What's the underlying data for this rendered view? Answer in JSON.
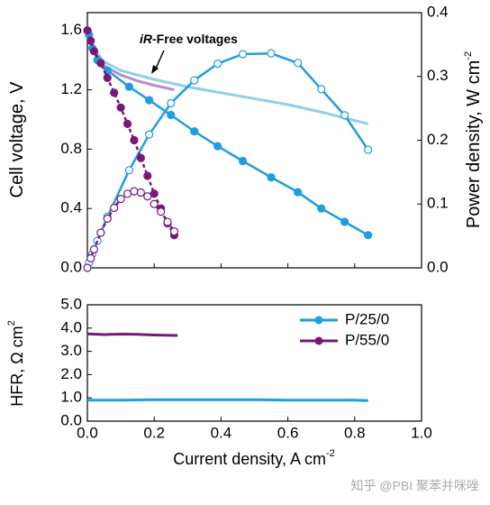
{
  "chart_data": [
    {
      "type": "line",
      "ylabel": [
        "Cell voltage, V"
      ],
      "y2label": [
        "Power density, W cm",
        "-2"
      ],
      "annotation": [
        "iR",
        "-Free voltages"
      ],
      "xlim": [
        0,
        1.0
      ],
      "ylim": [
        0,
        1.72
      ],
      "yticks": [
        {
          "value": 0,
          "label": "0.0"
        },
        {
          "value": 0.4,
          "label": "0.4"
        },
        {
          "value": 0.8,
          "label": "0.8"
        },
        {
          "value": 1.2,
          "label": "1.2"
        },
        {
          "value": 1.6,
          "label": "1.6"
        }
      ],
      "y2lim": [
        0,
        0.4
      ],
      "y2ticks": [
        {
          "value": 0,
          "label": "0.0"
        },
        {
          "value": 0.1,
          "label": "0.1"
        },
        {
          "value": 0.2,
          "label": "0.2"
        },
        {
          "value": 0.3,
          "label": "0.3"
        },
        {
          "value": 0.4,
          "label": "0.4"
        }
      ],
      "series": [
        {
          "color": "#8ecfee",
          "marker": "none",
          "x": [
            0.01,
            0.05,
            0.1,
            0.2,
            0.3,
            0.4,
            0.5,
            0.6,
            0.7,
            0.84
          ],
          "values": [
            1.5,
            1.39,
            1.33,
            1.27,
            1.22,
            1.18,
            1.14,
            1.1,
            1.05,
            0.97
          ]
        },
        {
          "color": "#b88ad0",
          "marker": "none",
          "x": [
            0.01,
            0.05,
            0.1,
            0.15,
            0.2,
            0.26
          ],
          "values": [
            1.5,
            1.36,
            1.3,
            1.26,
            1.23,
            1.2
          ]
        },
        {
          "color": "#1e9de0",
          "marker": "filled",
          "x": [
            0.005,
            0.015,
            0.03,
            0.06,
            0.125,
            0.185,
            0.25,
            0.32,
            0.39,
            0.465,
            0.55,
            0.63,
            0.7,
            0.77,
            0.84
          ],
          "values": [
            1.57,
            1.48,
            1.4,
            1.33,
            1.22,
            1.13,
            1.03,
            0.92,
            0.82,
            0.72,
            0.61,
            0.51,
            0.4,
            0.31,
            0.22
          ]
        },
        {
          "color": "#1e9de0",
          "marker": "open",
          "axis": "y2",
          "x": [
            0.005,
            0.015,
            0.03,
            0.06,
            0.125,
            0.185,
            0.25,
            0.32,
            0.39,
            0.465,
            0.55,
            0.63,
            0.7,
            0.77,
            0.84
          ],
          "values": [
            0.008,
            0.022,
            0.042,
            0.08,
            0.153,
            0.209,
            0.258,
            0.294,
            0.32,
            0.335,
            0.336,
            0.321,
            0.28,
            0.239,
            0.185
          ]
        },
        {
          "color": "#7a1778",
          "marker": "filled",
          "dash": true,
          "x": [
            0,
            0.01,
            0.02,
            0.04,
            0.06,
            0.08,
            0.1,
            0.12,
            0.14,
            0.16,
            0.18,
            0.2,
            0.22,
            0.24,
            0.26
          ],
          "values": [
            1.6,
            1.53,
            1.46,
            1.38,
            1.28,
            1.18,
            1.08,
            0.97,
            0.86,
            0.74,
            0.62,
            0.5,
            0.4,
            0.3,
            0.22
          ]
        },
        {
          "color": "#7a1778",
          "marker": "open",
          "dash": true,
          "axis": "y2",
          "x": [
            0,
            0.01,
            0.02,
            0.04,
            0.06,
            0.08,
            0.1,
            0.12,
            0.14,
            0.16,
            0.18,
            0.2,
            0.22,
            0.24,
            0.26
          ],
          "values": [
            0,
            0.015,
            0.029,
            0.055,
            0.077,
            0.094,
            0.108,
            0.116,
            0.12,
            0.118,
            0.112,
            0.1,
            0.088,
            0.072,
            0.057
          ]
        }
      ]
    },
    {
      "type": "line",
      "xlabel": [
        "Current density, A cm",
        "-2"
      ],
      "ylabel": [
        "HFR, Ω cm",
        "2"
      ],
      "legend": "upper right",
      "xlim": [
        0,
        1.0
      ],
      "xticks": [
        {
          "value": 0,
          "label": "0.0"
        },
        {
          "value": 0.2,
          "label": "0.2"
        },
        {
          "value": 0.4,
          "label": "0.4"
        },
        {
          "value": 0.6,
          "label": "0.6"
        },
        {
          "value": 0.8,
          "label": "0.8"
        },
        {
          "value": 1.0,
          "label": "1.0"
        }
      ],
      "ylim": [
        0,
        5.0
      ],
      "yticks": [
        {
          "value": 0,
          "label": "0.0"
        },
        {
          "value": 1,
          "label": "1.0"
        },
        {
          "value": 2,
          "label": "2.0"
        },
        {
          "value": 3,
          "label": "3.0"
        },
        {
          "value": 4,
          "label": "4.0"
        },
        {
          "value": 5,
          "label": "5.0"
        }
      ],
      "series": [
        {
          "name": "P/25/0",
          "color": "#1e9de0",
          "marker": "none",
          "x": [
            0,
            0.1,
            0.2,
            0.3,
            0.4,
            0.5,
            0.6,
            0.7,
            0.8,
            0.84
          ],
          "values": [
            0.9,
            0.9,
            0.92,
            0.92,
            0.92,
            0.92,
            0.9,
            0.9,
            0.9,
            0.88
          ]
        },
        {
          "name": "P/55/0",
          "color": "#7a1778",
          "marker": "none",
          "x": [
            0,
            0.05,
            0.1,
            0.15,
            0.2,
            0.27
          ],
          "values": [
            3.75,
            3.72,
            3.74,
            3.73,
            3.7,
            3.68
          ]
        }
      ]
    }
  ],
  "watermark": "知乎 @PBI 聚苯并咪唑"
}
